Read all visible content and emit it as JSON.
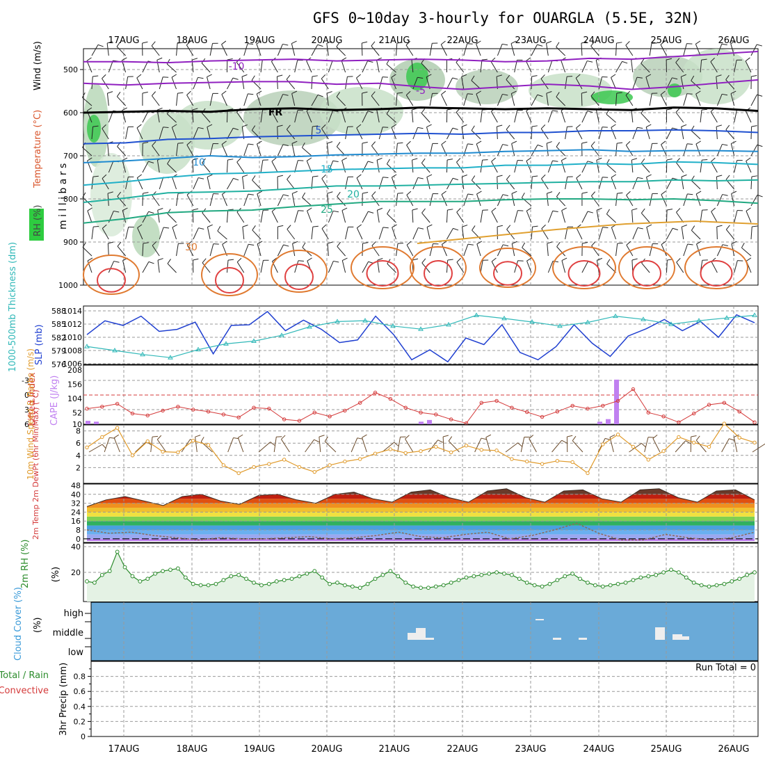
{
  "title": "GFS 0~10day 3-hourly for OUARGLA (5.5E, 32N)",
  "dates": [
    "17AUG",
    "18AUG",
    "19AUG",
    "20AUG",
    "21AUG",
    "22AUG",
    "23AUG",
    "24AUG",
    "25AUG",
    "26AUG"
  ],
  "colors": {
    "temp_line": "#d43a3a",
    "cape": "#c080f0",
    "slp": "#1f3fd0",
    "thick": "#30b8b8",
    "wind10": "#e09a2a",
    "rh2m": "#2c8c2c",
    "cloud": "#6aaad8",
    "dew": "#8c6a5a"
  },
  "chart_data": [
    {
      "type": "heatmap",
      "panel": "upper-air",
      "ylabel": "m i l l i b a r s",
      "legend": [
        "Wind (m/s)",
        "Temperature (°C)",
        "RH (%)"
      ],
      "yticks": [
        "500",
        "600",
        "700",
        "800",
        "900",
        "1000"
      ],
      "ylim": [
        1000,
        450
      ],
      "isotherm_labels": [
        "-10",
        "-5",
        "FR",
        "5",
        "10",
        "15",
        "20",
        "25",
        "30"
      ],
      "isotherms": [
        {
          "label": "-10",
          "p": [
            482,
            482,
            484,
            480,
            478,
            476,
            480,
            478,
            476,
            478,
            482,
            480,
            474,
            476,
            470,
            464,
            458
          ]
        },
        {
          "label": "-5",
          "p": [
            532,
            536,
            532,
            530,
            528,
            528,
            534,
            532,
            540,
            546,
            540,
            534,
            538,
            546,
            540,
            532,
            524
          ]
        },
        {
          "label": "FR",
          "p": [
            600,
            598,
            596,
            598,
            592,
            590,
            594,
            592,
            588,
            590,
            592,
            590,
            592,
            594,
            588,
            590,
            596
          ]
        },
        {
          "label": "5",
          "p": [
            672,
            670,
            662,
            660,
            656,
            654,
            652,
            650,
            648,
            650,
            646,
            646,
            642,
            642,
            640,
            642,
            646
          ]
        },
        {
          "label": "10",
          "p": [
            716,
            712,
            706,
            700,
            704,
            702,
            698,
            696,
            694,
            694,
            690,
            688,
            686,
            690,
            688,
            688,
            690
          ]
        },
        {
          "label": "15",
          "p": [
            768,
            760,
            750,
            742,
            740,
            736,
            732,
            730,
            728,
            728,
            722,
            722,
            718,
            720,
            714,
            716,
            720
          ]
        },
        {
          "label": "20",
          "p": [
            808,
            798,
            786,
            784,
            782,
            776,
            770,
            770,
            768,
            766,
            764,
            762,
            760,
            760,
            756,
            758,
            756
          ]
        },
        {
          "label": "25",
          "p": [
            856,
            846,
            832,
            828,
            826,
            818,
            812,
            806,
            806,
            806,
            802,
            800,
            800,
            802,
            800,
            804,
            810
          ]
        }
      ]
    },
    {
      "type": "line",
      "panel": "slp-thickness",
      "ylabel_left": "1000-500mb Thickness (dm)",
      "ylabel_right": "SLP (mb)",
      "yticks_left": [
        "588",
        "585",
        "582",
        "579",
        "576"
      ],
      "yticks_right": [
        "1014",
        "1012",
        "1010",
        "1008",
        "1006"
      ],
      "series": [
        {
          "name": "SLP",
          "values": [
            1010.4,
            1012.5,
            1011.8,
            1013.2,
            1010.9,
            1011.2,
            1012.3,
            1007.5,
            1011.8,
            1011.9,
            1013.9,
            1011.0,
            1012.6,
            1011.2,
            1009.2,
            1009.6,
            1013.2,
            1010.4,
            1006.6,
            1008.1,
            1006.3,
            1009.9,
            1008.9,
            1011.9,
            1007.7,
            1006.6,
            1008.6,
            1011.9,
            1009.1,
            1007.1,
            1010.2,
            1011.3,
            1012.7,
            1011.0,
            1012.4,
            1010.0,
            1013.4,
            1012.2
          ]
        },
        {
          "name": "Thickness",
          "values": [
            580.0,
            579.1,
            578.2,
            577.5,
            579.3,
            580.6,
            581.2,
            582.5,
            584.4,
            585.6,
            585.8,
            584.6,
            583.9,
            584.9,
            587.0,
            586.3,
            585.5,
            584.6,
            585.4,
            586.8,
            586.1,
            585.0,
            585.8,
            586.4,
            587.0
          ]
        }
      ]
    },
    {
      "type": "line",
      "panel": "lifted-cape",
      "ylabel_left": "Lifted Index",
      "ylabel_right": "CAPE (J/kg)",
      "yticks_left": [
        "-3",
        "0",
        "3",
        "6"
      ],
      "yticks_right": [
        "208",
        "156",
        "104",
        "52",
        "10"
      ],
      "series": [
        {
          "name": "Lifted Index",
          "values": [
            2.8,
            2.4,
            1.8,
            3.8,
            4.2,
            3.2,
            2.4,
            3.0,
            3.4,
            4.0,
            4.6,
            2.6,
            2.8,
            5.0,
            5.3,
            3.6,
            4.4,
            3.2,
            1.6,
            -0.5,
            0.8,
            2.6,
            3.6,
            4.0,
            5.0,
            5.8,
            1.6,
            1.2,
            2.6,
            3.5,
            4.5,
            3.4,
            2.2,
            2.8,
            2.2,
            1.2,
            -1.2,
            3.6,
            4.4,
            5.6,
            3.8,
            2.0,
            1.6,
            3.4,
            5.6
          ]
        },
        {
          "name": "CAPE",
          "values": [
            8,
            6,
            0,
            0,
            0,
            0,
            0,
            0,
            0,
            0,
            0,
            6,
            10,
            0,
            0,
            0,
            0,
            0,
            6,
            12,
            105,
            0,
            0,
            0
          ]
        }
      ]
    },
    {
      "type": "line",
      "panel": "wind10m",
      "ylabel": "10m Wind Speed & Barbs (m/s)",
      "yticks": [
        "8",
        "6",
        "4",
        "2"
      ],
      "series": [
        {
          "name": "10m Wind Speed",
          "values": [
            5.3,
            7.0,
            8.5,
            4.0,
            6.3,
            4.6,
            4.5,
            6.4,
            5.7,
            2.4,
            1.1,
            2.1,
            2.6,
            3.3,
            2.1,
            1.3,
            2.4,
            3.0,
            3.4,
            4.3,
            5.0,
            4.4,
            4.7,
            5.4,
            4.5,
            5.6,
            4.9,
            4.8,
            3.4,
            3.0,
            2.6,
            3.1,
            2.9,
            1.1,
            5.8,
            7.4,
            5.4,
            3.3,
            4.7,
            7.0,
            6.1,
            5.4,
            9.2,
            6.9,
            6.1
          ]
        }
      ]
    },
    {
      "type": "area",
      "panel": "temperature",
      "ylabel": "2m Temp 2m DewPt (6hr Min/Max) (°C)",
      "yticks": [
        "48",
        "40",
        "32",
        "24",
        "16",
        "8",
        "0"
      ],
      "series": [
        {
          "name": "2m Temp",
          "values": [
            29,
            35,
            38,
            34,
            30,
            38,
            40,
            34,
            31,
            39,
            40,
            35,
            32,
            40,
            42,
            36,
            33,
            42,
            44,
            37,
            33,
            43,
            45,
            37,
            33,
            43,
            44,
            36,
            33,
            44,
            45,
            37,
            33,
            43,
            44,
            35
          ]
        },
        {
          "name": "2m DewPt",
          "values": [
            8,
            5,
            6,
            3,
            1,
            -1,
            1,
            0,
            0,
            1,
            2,
            0,
            1,
            3,
            6,
            2,
            1,
            4,
            6,
            0,
            3,
            8,
            14,
            5,
            -1,
            -1,
            4,
            1,
            -1,
            1,
            6
          ]
        }
      ]
    },
    {
      "type": "area",
      "panel": "rh2m",
      "ylabel": "2m RH (%)",
      "yticks": [
        "40",
        "20"
      ],
      "series": [
        {
          "name": "2m RH",
          "values": [
            13,
            12,
            18,
            21,
            36,
            24,
            17,
            13,
            15,
            19,
            21,
            22,
            23,
            16,
            11,
            10,
            10,
            11,
            14,
            17,
            18,
            15,
            12,
            10,
            11,
            13,
            14,
            15,
            17,
            19,
            21,
            16,
            11,
            12,
            10,
            9,
            8,
            11,
            15,
            18,
            21,
            17,
            12,
            9,
            8,
            8,
            9,
            10,
            12,
            14,
            16,
            17,
            18,
            19,
            20,
            19,
            18,
            15,
            12,
            10,
            9,
            11,
            14,
            17,
            19,
            15,
            12,
            10,
            9,
            10,
            11,
            12,
            14,
            16,
            17,
            18,
            20,
            22,
            20,
            16,
            12,
            10,
            9,
            10,
            11,
            13,
            15,
            18,
            20
          ]
        }
      ]
    },
    {
      "type": "bar",
      "panel": "cloud-cover",
      "ylabel": "Cloud Cover (%)",
      "categories": [
        "high",
        "middle",
        "low"
      ],
      "annotations": [
        "21AUG cloud",
        "23AUG cloud",
        "24AUG cloud",
        "25AUG cloud"
      ]
    },
    {
      "type": "bar",
      "panel": "precip",
      "ylabel_left": "3hr Precip (mm)",
      "ylabel_total": "Total / Rain",
      "ylabel_conv": "Convective",
      "yticks": [
        "0.8",
        "0.6",
        "0.4",
        "0.2",
        "0"
      ],
      "annotation": "Run Total = 0"
    }
  ]
}
